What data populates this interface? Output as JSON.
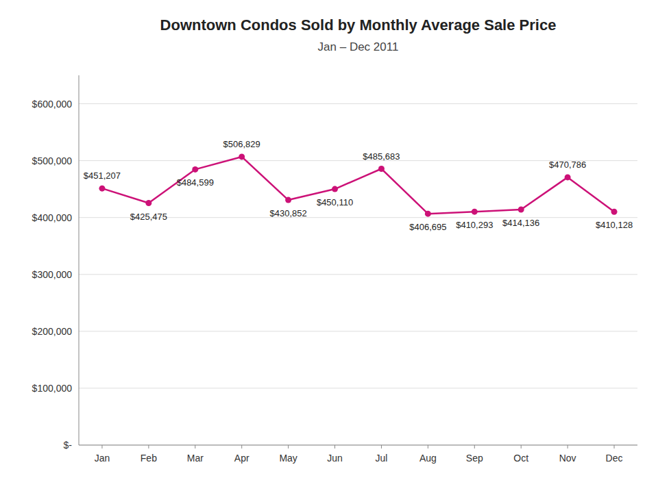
{
  "chart_data": {
    "type": "line",
    "title": "Downtown Condos Sold by Monthly Average Sale Price",
    "subtitle": "Jan – Dec 2011",
    "categories": [
      "Jan",
      "Feb",
      "Mar",
      "Apr",
      "May",
      "Jun",
      "Jul",
      "Aug",
      "Sep",
      "Oct",
      "Nov",
      "Dec"
    ],
    "values": [
      451207,
      425475,
      484599,
      506829,
      430852,
      450110,
      485683,
      406695,
      410293,
      414136,
      470786,
      410128
    ],
    "value_labels": [
      "$451,207",
      "$425,475",
      "$484,599",
      "$506,829",
      "$430,852",
      "$450,110",
      "$485,683",
      "$406,695",
      "$410,293",
      "$414,136",
      "$470,786",
      "$410,128"
    ],
    "data_labels": true,
    "color": "#CC1177",
    "marker": "circle",
    "ylim": [
      0,
      650000
    ],
    "yticks": [
      {
        "value": 0,
        "label": "$-"
      },
      {
        "value": 100000,
        "label": "$100,000"
      },
      {
        "value": 200000,
        "label": "$200,000"
      },
      {
        "value": 300000,
        "label": "$300,000"
      },
      {
        "value": 400000,
        "label": "$400,000"
      },
      {
        "value": 500000,
        "label": "$500,000"
      },
      {
        "value": 600000,
        "label": "$600,000"
      }
    ],
    "grid": true
  }
}
